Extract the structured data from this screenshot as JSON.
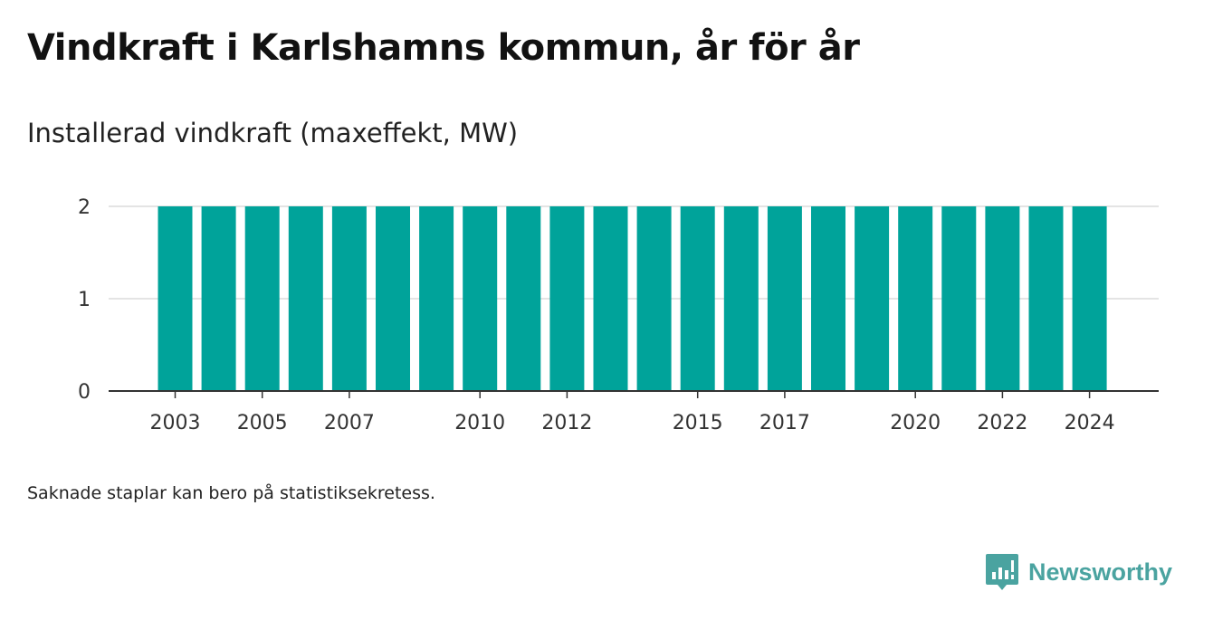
{
  "header": {
    "title": "Vindkraft i Karlshamns kommun, år för år",
    "subtitle": "Installerad vindkraft (maxeffekt, MW)"
  },
  "footnote": "Saknade staplar kan bero på statistiksekretess.",
  "brand": {
    "name": "Newsworthy",
    "icon": "newsworthy-logo-icon",
    "color": "#4aa3a0"
  },
  "chart_data": {
    "type": "bar",
    "categories": [
      "2003",
      "2004",
      "2005",
      "2006",
      "2007",
      "2008",
      "2009",
      "2010",
      "2011",
      "2012",
      "2013",
      "2014",
      "2015",
      "2016",
      "2017",
      "2018",
      "2019",
      "2020",
      "2021",
      "2022",
      "2023",
      "2024"
    ],
    "values": [
      2,
      2,
      2,
      2,
      2,
      2,
      2,
      2,
      2,
      2,
      2,
      2,
      2,
      2,
      2,
      2,
      2,
      2,
      2,
      2,
      2,
      2
    ],
    "x_tick_labels": [
      "2003",
      "2005",
      "2007",
      "2010",
      "2012",
      "2015",
      "2017",
      "2020",
      "2022",
      "2024"
    ],
    "y_ticks": [
      0,
      1,
      2
    ],
    "ylim": [
      0,
      2
    ],
    "xlabel": "",
    "ylabel": "",
    "grid": true,
    "bar_color": "#00a39a"
  }
}
